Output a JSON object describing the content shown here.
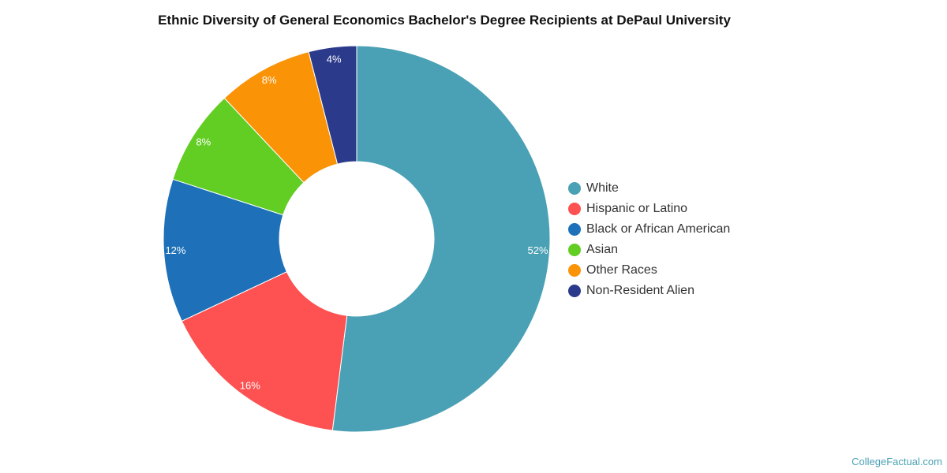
{
  "chart_data": {
    "type": "pie",
    "title": "Ethnic Diversity of General Economics Bachelor's Degree Recipients at DePaul University",
    "categories": [
      "White",
      "Hispanic or Latino",
      "Black or African American",
      "Asian",
      "Other Races",
      "Non-Resident Alien"
    ],
    "values": [
      52,
      16,
      12,
      8,
      8,
      4
    ],
    "data_labels": [
      "52%",
      "16%",
      "12%",
      "8%",
      "8%",
      "4%"
    ],
    "colors": [
      "#4aa0b4",
      "#fe5151",
      "#1e71b8",
      "#62cd23",
      "#fa9306",
      "#2c3a8c"
    ],
    "legend_position": "right",
    "donut": true
  },
  "watermark": "CollegeFactual.com"
}
